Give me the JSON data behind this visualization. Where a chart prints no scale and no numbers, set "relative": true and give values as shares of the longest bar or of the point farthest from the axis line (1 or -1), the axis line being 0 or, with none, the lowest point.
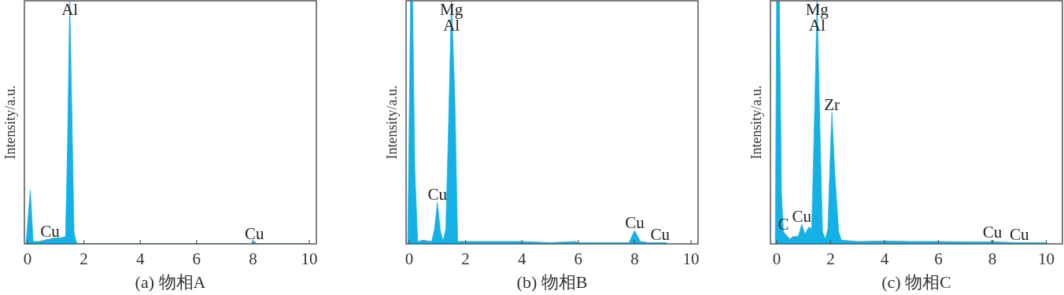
{
  "chart_data": [
    {
      "type": "area",
      "title": "(a) 物相A",
      "ylabel": "Intensity/a.u.",
      "relative": true,
      "xlim": [
        -0.11,
        10.25
      ],
      "xticks": [
        0,
        2,
        4,
        6,
        8,
        10
      ],
      "series": [
        {
          "color": "#14b1e7",
          "x": [
            -0.05,
            0.05,
            0.1,
            0.2,
            0.4,
            0.6,
            0.8,
            1.0,
            1.2,
            1.35,
            1.42,
            1.5,
            1.58,
            1.65,
            1.72,
            1.8,
            4,
            7.9,
            8.05,
            8.15,
            10
          ],
          "values": [
            0,
            0.15,
            0.22,
            0.01,
            0.01,
            0.015,
            0.02,
            0.025,
            0.025,
            0.03,
            0.4,
            1,
            0.5,
            0.05,
            0.01,
            0,
            0,
            0,
            0.01,
            0,
            0
          ]
        }
      ],
      "annotations": [
        {
          "text": "Al",
          "x": 1.5,
          "y": 1
        },
        {
          "text": "Cu",
          "x": 0.8,
          "y": 0.02
        },
        {
          "text": "Cu",
          "x": 8.05,
          "y": 0.01
        }
      ]
    },
    {
      "type": "area",
      "title": "(b) 物相B",
      "ylabel": "Intensity/a.u.",
      "relative": true,
      "xlim": [
        -0.11,
        10.25
      ],
      "xticks": [
        0,
        2,
        4,
        6,
        8,
        10
      ],
      "series": [
        {
          "color": "#14b1e7",
          "x": [
            -0.05,
            0.05,
            0.12,
            0.2,
            0.3,
            0.5,
            0.8,
            0.9,
            1.0,
            1.1,
            1.2,
            1.3,
            1.4,
            1.5,
            1.62,
            1.72,
            2,
            3,
            4,
            5,
            5.9,
            6,
            7,
            7.8,
            8.0,
            8.2,
            8.5,
            8.9,
            9.1,
            9.2
          ],
          "values": [
            0,
            1,
            1,
            0.3,
            0.01,
            0.015,
            0.01,
            0.06,
            0.17,
            0.06,
            0.01,
            0.06,
            0.5,
            1,
            0.6,
            0.01,
            0.01,
            0.01,
            0.01,
            0.005,
            0.01,
            0.005,
            0.005,
            0.005,
            0.055,
            0.01,
            0.005,
            0.005,
            0.005,
            0
          ]
        }
      ],
      "annotations": [
        {
          "text": "Mg",
          "x": 1.5,
          "y": 1
        },
        {
          "text": "Al",
          "x": 1.5,
          "y": 1
        },
        {
          "text": "Cu",
          "x": 1.0,
          "y": 0.17
        },
        {
          "text": "Cu",
          "x": 8.0,
          "y": 0.055
        },
        {
          "text": "Cu",
          "x": 8.9,
          "y": 0.005
        }
      ]
    },
    {
      "type": "area",
      "title": "(c) 物相C",
      "ylabel": "Intensity/a.u.",
      "relative": true,
      "xlim": [
        -0.23,
        10.6
      ],
      "xticks": [
        0,
        2,
        4,
        6,
        8,
        10
      ],
      "series": [
        {
          "color": "#14b1e7",
          "x": [
            -0.05,
            0.0,
            0.1,
            0.18,
            0.25,
            0.4,
            0.5,
            0.6,
            0.8,
            0.93,
            1.05,
            1.2,
            1.3,
            1.4,
            1.5,
            1.62,
            1.7,
            1.8,
            1.9,
            2.0,
            2.05,
            2.15,
            2.3,
            2.4,
            3,
            4,
            5,
            6,
            7,
            7.9,
            8.0,
            8.1,
            9,
            10,
            10.05
          ],
          "values": [
            0,
            1,
            1,
            0.2,
            0.05,
            0.03,
            0.02,
            0.03,
            0.03,
            0.08,
            0.04,
            0.07,
            0.06,
            0.5,
            1,
            0.4,
            0.05,
            0.02,
            0.06,
            0.4,
            0.54,
            0.3,
            0.05,
            0.015,
            0.01,
            0.012,
            0.01,
            0.01,
            0.008,
            0.008,
            0.015,
            0.008,
            0.005,
            0.005,
            0
          ]
        }
      ],
      "annotations": [
        {
          "text": "Mg",
          "x": 1.5,
          "y": 1
        },
        {
          "text": "Al",
          "x": 1.5,
          "y": 1
        },
        {
          "text": "Zr",
          "x": 2.05,
          "y": 0.54
        },
        {
          "text": "C",
          "x": 0.25,
          "y": 0.05
        },
        {
          "text": "Cu",
          "x": 0.93,
          "y": 0.08
        },
        {
          "text": "Cu",
          "x": 8.0,
          "y": 0.015
        },
        {
          "text": "Cu",
          "x": 9,
          "y": 0.005
        }
      ]
    }
  ]
}
